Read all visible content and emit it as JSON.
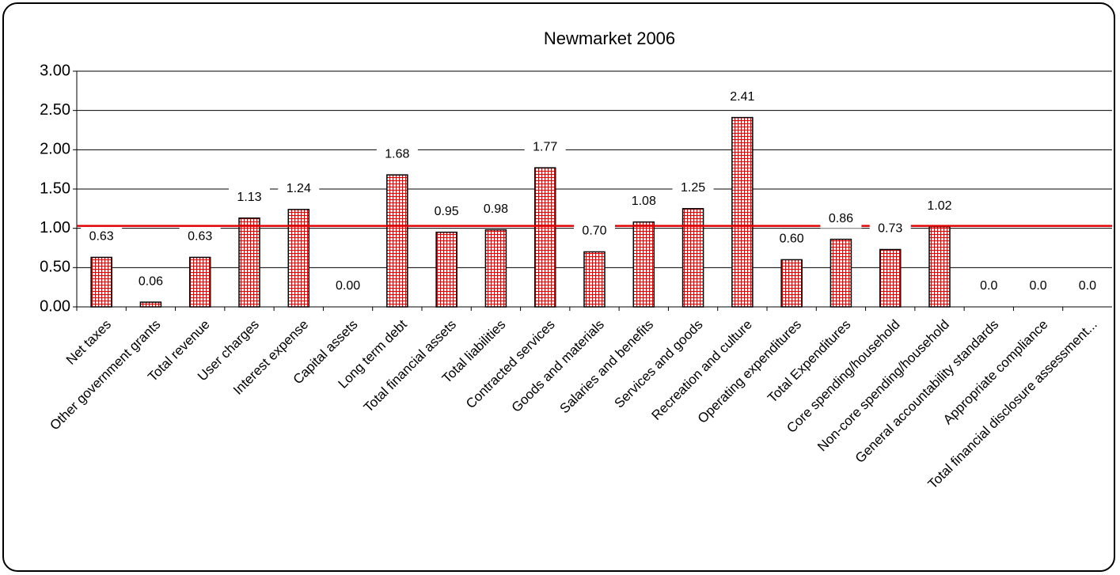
{
  "chart_data": {
    "type": "bar",
    "title": "Newmarket 2006",
    "categories": [
      "Net taxes",
      "Other government grants",
      "Total revenue",
      "User charges",
      "Interest expense",
      "Capital assets",
      "Long term debt",
      "Total financial assets",
      "Total liabilities",
      "Contracted services",
      "Goods and materials",
      "Salaries and benefits",
      "Services and goods",
      "Recreation and culture",
      "Operating expenditures",
      "Total Expenditures",
      "Core spending/household",
      "Non-core spending/household",
      "General accountability standards",
      "Appropriate compliance",
      "Total financial disclosure assessment..."
    ],
    "values": [
      0.63,
      0.06,
      0.63,
      1.13,
      1.24,
      0,
      1.68,
      0.95,
      0.98,
      1.77,
      0.7,
      1.08,
      1.25,
      2.41,
      0.6,
      0.86,
      0.73,
      1.02,
      0,
      0,
      0
    ],
    "value_labels": [
      "0.63",
      "0.06",
      "0.63",
      "1.13",
      "1.24",
      "0.00",
      "1.68",
      "0.95",
      "0.98",
      "1.77",
      "0.70",
      "1.08",
      "1.25",
      "2.41",
      "0.60",
      "0.86",
      "0.73",
      "1.02",
      "0.0",
      "0.0",
      "0.0"
    ],
    "color": "#e00000",
    "ylim": [
      0,
      3
    ],
    "yticks": [
      {
        "value": 0,
        "label": "0.00"
      },
      {
        "value": 0.5,
        "label": "0.50"
      },
      {
        "value": 1,
        "label": "1.00"
      },
      {
        "value": 1.5,
        "label": "1.50"
      },
      {
        "value": 2,
        "label": "2.00"
      },
      {
        "value": 2.5,
        "label": "2.50"
      },
      {
        "value": 3,
        "label": "3.00"
      }
    ],
    "grid": true,
    "reference_line": {
      "value": 1.03,
      "color": "#e00000"
    }
  }
}
